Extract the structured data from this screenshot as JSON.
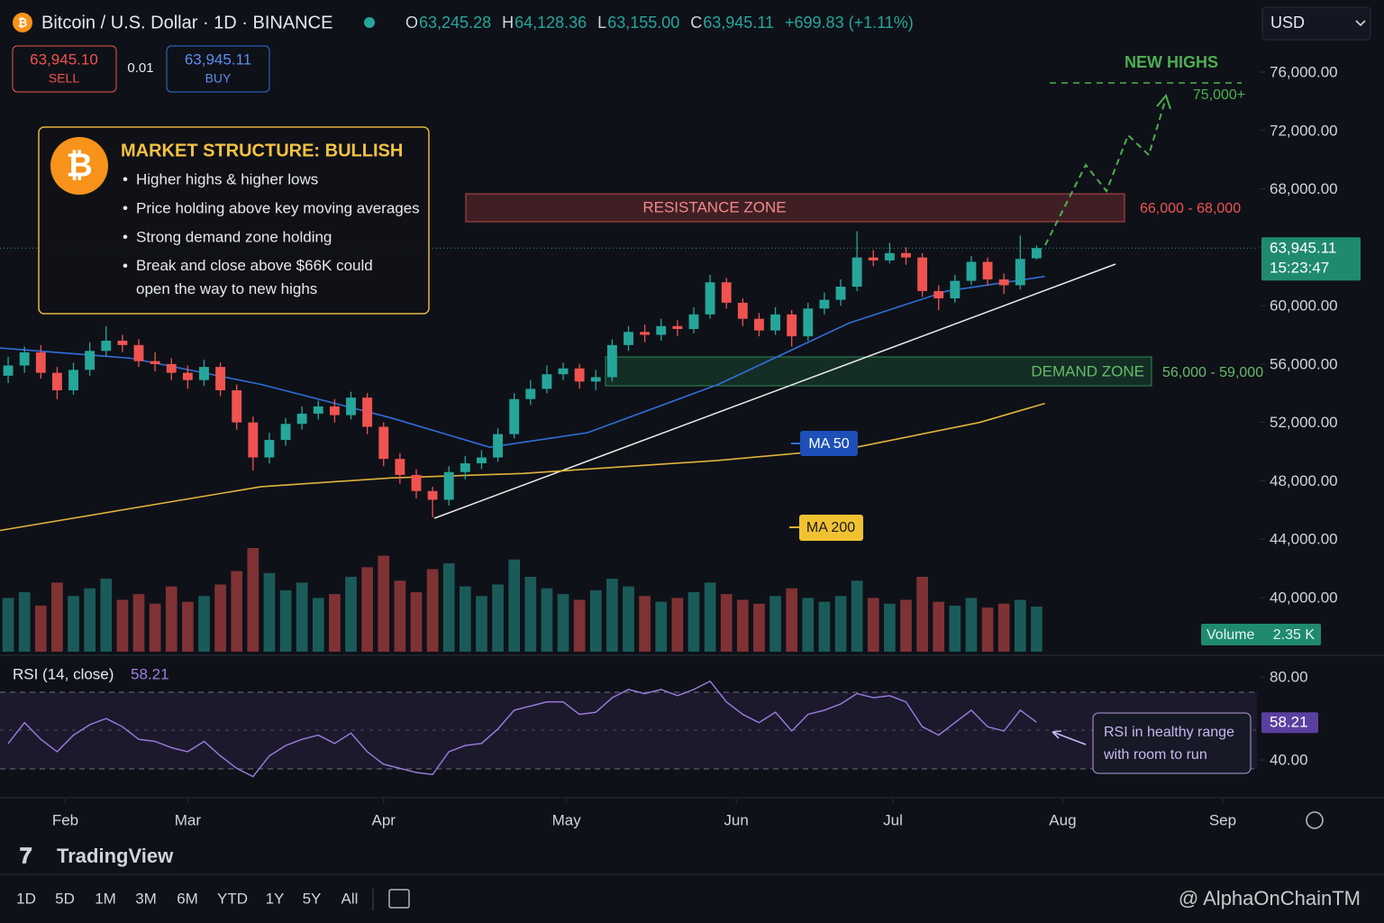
{
  "header": {
    "title": "Bitcoin / U.S. Dollar · 1D · BINANCE",
    "ohlc": [
      {
        "key": "O",
        "value": "63,245.28"
      },
      {
        "key": "H",
        "value": "64,128.36"
      },
      {
        "key": "L",
        "value": "63,155.00"
      },
      {
        "key": "C",
        "value": "63,945.11"
      }
    ],
    "change": "+699.83 (+1.11%)"
  },
  "trade": {
    "sell_price": "63,945.10",
    "sell": "SELL",
    "spread": "0.01",
    "buy_price": "63,945.11",
    "buy": "BUY"
  },
  "currency": "USD",
  "info_box": {
    "title": "MARKET STRUCTURE: BULLISH",
    "bullets": [
      "Higher highs & higher lows",
      "Price holding above key moving averages",
      "Strong demand zone holding",
      "Break and close above $66K could open the way to new highs"
    ]
  },
  "chart_data": {
    "type": "candlestick",
    "up_color": "#26a69a",
    "down_color": "#ef5350",
    "x": [
      0.5,
      1.5,
      2.5,
      3.5,
      4.5,
      5.5,
      6.5,
      7.5,
      8.5,
      9.5,
      10.5,
      11.5,
      12.5,
      13.5,
      14.5,
      15.5,
      16.5,
      17.5,
      18.5,
      19.5,
      20.5,
      21.5,
      22.5,
      23.5,
      24.5,
      25.5,
      26.5,
      27.5,
      28.5,
      29.5,
      30.5,
      31.5,
      32.5,
      33.5,
      34.5,
      35.5,
      36.5,
      37.5,
      38.5,
      39.5,
      40.5,
      41.5,
      42.5,
      43.5,
      44.5,
      45.5,
      46.5,
      47.5,
      48.5,
      49.5,
      50.5,
      51.5,
      52.5,
      53.5,
      54.5,
      55.5,
      56.5,
      57.5,
      58.5,
      59.5,
      60.5,
      61.5,
      62.5,
      63.5
    ],
    "open": [
      55200,
      55900,
      56800,
      55400,
      54200,
      55600,
      56900,
      57600,
      57300,
      56200,
      56000,
      55400,
      54900,
      55800,
      54200,
      52000,
      49600,
      50800,
      51900,
      52600,
      53100,
      52500,
      53700,
      51700,
      49500,
      48400,
      47300,
      46700,
      48600,
      49200,
      49600,
      51200,
      53600,
      54300,
      55300,
      55700,
      54800,
      55100,
      57300,
      58200,
      58000,
      58600,
      58400,
      59400,
      61600,
      60200,
      59100,
      58300,
      59400,
      57900,
      59800,
      60400,
      61300,
      63300,
      63100,
      63600,
      63300,
      61000,
      60500,
      61700,
      63000,
      61800,
      61400,
      63245.28
    ],
    "high": [
      56500,
      57200,
      57300,
      55800,
      56100,
      57500,
      58600,
      58000,
      57700,
      56800,
      56400,
      55900,
      56300,
      56100,
      54600,
      52400,
      51300,
      52300,
      53100,
      53500,
      53600,
      54100,
      54000,
      52000,
      49900,
      48800,
      47600,
      49000,
      49700,
      50100,
      51600,
      54000,
      54900,
      55900,
      56100,
      56000,
      55600,
      57700,
      58600,
      58700,
      59100,
      59000,
      59900,
      62100,
      61900,
      60500,
      59500,
      59900,
      59700,
      60200,
      60900,
      61800,
      65100,
      63800,
      64300,
      64000,
      63600,
      61400,
      62100,
      63400,
      63300,
      62200,
      64800,
      64128.36
    ],
    "low": [
      54700,
      55400,
      55000,
      53600,
      53900,
      55200,
      56500,
      56800,
      55800,
      55500,
      54900,
      54300,
      54500,
      53800,
      51500,
      48700,
      49200,
      50400,
      51500,
      52200,
      52000,
      52200,
      51200,
      49000,
      47800,
      46800,
      45500,
      46300,
      48100,
      48800,
      49300,
      50900,
      53200,
      54000,
      54900,
      54300,
      54200,
      54800,
      56900,
      57500,
      57600,
      57900,
      58100,
      59100,
      59800,
      58600,
      57900,
      58000,
      57200,
      57600,
      59400,
      60000,
      61000,
      62700,
      62900,
      62800,
      60600,
      59700,
      60200,
      61400,
      61400,
      60800,
      61100,
      63155
    ],
    "close": [
      55900,
      56800,
      55400,
      54200,
      55600,
      56900,
      57600,
      57300,
      56200,
      56000,
      55400,
      54900,
      55800,
      54200,
      52000,
      49600,
      50800,
      51900,
      52600,
      53100,
      52500,
      53700,
      51700,
      49500,
      48400,
      47300,
      46700,
      48600,
      49200,
      49600,
      51200,
      53600,
      54300,
      55300,
      55700,
      54800,
      55100,
      57300,
      58200,
      58000,
      58600,
      58400,
      59400,
      61600,
      60200,
      59100,
      58300,
      59400,
      57900,
      59800,
      60400,
      61300,
      63300,
      63100,
      63600,
      63300,
      61000,
      60500,
      61700,
      63000,
      61800,
      61400,
      63200,
      63945.11
    ],
    "xlim": [
      0,
      77
    ],
    "xticks": [
      {
        "value": 4,
        "label": "Feb"
      },
      {
        "value": 11.5,
        "label": "Mar"
      },
      {
        "value": 23.5,
        "label": "Apr"
      },
      {
        "value": 34.7,
        "label": "May"
      },
      {
        "value": 45.1,
        "label": "Jun"
      },
      {
        "value": 54.7,
        "label": "Jul"
      },
      {
        "value": 65.1,
        "label": "Aug"
      },
      {
        "value": 74.9,
        "label": "Sep"
      }
    ],
    "ylim": [
      36170,
      80940
    ],
    "yticks": [
      {
        "value": 76000,
        "label": "76,000.00"
      },
      {
        "value": 72000,
        "label": "72,000.00"
      },
      {
        "value": 68000,
        "label": "68,000.00"
      },
      {
        "value": 64000,
        "label": "64,000.00"
      },
      {
        "value": 60000,
        "label": "60,000.00"
      },
      {
        "value": 56000,
        "label": "56,000.00"
      },
      {
        "value": 52000,
        "label": "52,000.00"
      },
      {
        "value": 48000,
        "label": "48,000.00"
      },
      {
        "value": 44000,
        "label": "44,000.00"
      },
      {
        "value": 40000,
        "label": "40,000.00"
      }
    ],
    "last_price": {
      "price": "63,945.11",
      "time": "15:23:47"
    },
    "moving_averages": [
      {
        "name": "MA 50",
        "color": "#2f6fd8",
        "x": [
          0,
          8,
          16,
          24,
          30,
          36,
          44,
          52,
          58,
          64
        ],
        "values": [
          57100,
          56400,
          54600,
          52300,
          50300,
          51300,
          54600,
          58800,
          61000,
          62000
        ]
      },
      {
        "name": "MA 200",
        "color": "#e0b43a",
        "x": [
          0,
          16,
          24,
          32,
          44,
          52,
          60,
          64
        ],
        "values": [
          44600,
          47600,
          48200,
          48500,
          49400,
          50200,
          52000,
          53300
        ]
      }
    ],
    "volume": {
      "label": "Volume",
      "value_label": "2.35 K",
      "values": [
        2.8,
        3.1,
        2.4,
        3.6,
        2.9,
        3.3,
        3.8,
        2.7,
        3.0,
        2.5,
        3.4,
        2.6,
        2.9,
        3.5,
        4.2,
        5.4,
        4.1,
        3.2,
        3.6,
        2.8,
        3.0,
        3.9,
        4.4,
        5.0,
        3.7,
        3.1,
        4.3,
        4.6,
        3.4,
        2.9,
        3.5,
        4.8,
        3.9,
        3.3,
        3.0,
        2.7,
        3.2,
        3.8,
        3.4,
        2.9,
        2.6,
        2.8,
        3.1,
        3.6,
        3.0,
        2.7,
        2.5,
        2.9,
        3.3,
        2.8,
        2.6,
        2.9,
        3.7,
        2.8,
        2.5,
        2.7,
        3.9,
        2.6,
        2.4,
        2.8,
        2.3,
        2.5,
        2.7,
        2.35
      ]
    },
    "rsi": {
      "title": "RSI (14, close)",
      "value_label": "58.21",
      "color": "#9c7ee0",
      "ylim": [
        24,
        87
      ],
      "yticks": [
        {
          "value": 80,
          "label": "80.00"
        },
        {
          "value": 40,
          "label": "40.00"
        }
      ],
      "values": [
        48,
        58,
        50,
        44,
        52,
        57,
        60,
        56,
        50,
        49,
        46,
        44,
        49,
        42,
        36,
        32,
        42,
        47,
        50,
        52,
        48,
        53,
        44,
        38,
        36,
        34,
        33,
        44,
        47,
        48,
        55,
        64,
        66,
        68,
        68,
        62,
        63,
        70,
        74,
        72,
        74,
        71,
        74,
        78,
        68,
        62,
        58,
        63,
        54,
        62,
        64,
        67,
        72,
        70,
        71,
        68,
        56,
        52,
        58,
        64,
        56,
        54,
        64,
        58.21
      ],
      "note": "RSI in healthy range with room to run"
    },
    "annotations": {
      "resistance": "RESISTANCE ZONE",
      "resistance_range": "66,000 - 68,000",
      "demand": "DEMAND ZONE",
      "demand_range": "56,000 - 59,000",
      "new_highs": "NEW HIGHS",
      "target": "75,000+"
    }
  },
  "timeframes": [
    "1D",
    "5D",
    "1M",
    "3M",
    "6M",
    "YTD",
    "1Y",
    "5Y",
    "All"
  ],
  "brand": "TradingView",
  "watermark": "@ AlphaOnChainTM"
}
